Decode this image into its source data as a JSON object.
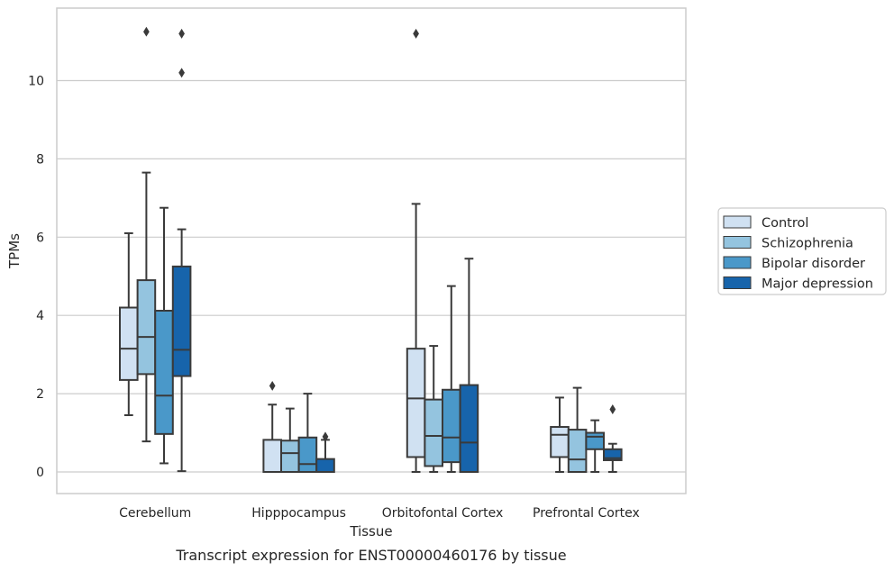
{
  "caption": "Transcript expression for ENST00000460176 by tissue",
  "chart_data": {
    "type": "boxplot",
    "title": "",
    "xlabel": "Tissue",
    "ylabel": "TPMs",
    "ylim": [
      -0.55,
      11.85
    ],
    "yticks": [
      0,
      2,
      4,
      6,
      8,
      10
    ],
    "grid": "horizontal",
    "legend_position": "right",
    "categories": [
      "Cerebellum",
      "Hipppocampus",
      "Orbitofontal Cortex",
      "Prefrontal Cortex"
    ],
    "series": [
      {
        "name": "Control",
        "color": "#d0e1f2",
        "boxes": [
          {
            "whislo": 1.45,
            "q1": 2.35,
            "med": 3.15,
            "q3": 4.2,
            "whishi": 6.1,
            "fliers": []
          },
          {
            "whislo": 0.0,
            "q1": 0.0,
            "med": 0.0,
            "q3": 0.82,
            "whishi": 1.72,
            "fliers": [
              2.2
            ]
          },
          {
            "whislo": 0.0,
            "q1": 0.38,
            "med": 1.88,
            "q3": 3.15,
            "whishi": 6.85,
            "fliers": [
              11.2
            ]
          },
          {
            "whislo": 0.0,
            "q1": 0.38,
            "med": 0.95,
            "q3": 1.15,
            "whishi": 1.9,
            "fliers": []
          }
        ]
      },
      {
        "name": "Schizophrenia",
        "color": "#94c4df",
        "boxes": [
          {
            "whislo": 0.78,
            "q1": 2.5,
            "med": 3.45,
            "q3": 4.9,
            "whishi": 7.65,
            "fliers": [
              11.25
            ]
          },
          {
            "whislo": 0.0,
            "q1": 0.0,
            "med": 0.48,
            "q3": 0.8,
            "whishi": 1.62,
            "fliers": []
          },
          {
            "whislo": 0.0,
            "q1": 0.15,
            "med": 0.92,
            "q3": 1.85,
            "whishi": 3.22,
            "fliers": []
          },
          {
            "whislo": 0.0,
            "q1": 0.0,
            "med": 0.32,
            "q3": 1.08,
            "whishi": 2.15,
            "fliers": []
          }
        ]
      },
      {
        "name": "Bipolar disorder",
        "color": "#4a98c9",
        "boxes": [
          {
            "whislo": 0.22,
            "q1": 0.97,
            "med": 1.95,
            "q3": 4.12,
            "whishi": 6.75,
            "fliers": []
          },
          {
            "whislo": 0.0,
            "q1": 0.0,
            "med": 0.2,
            "q3": 0.88,
            "whishi": 2.0,
            "fliers": []
          },
          {
            "whislo": 0.0,
            "q1": 0.25,
            "med": 0.88,
            "q3": 2.1,
            "whishi": 4.75,
            "fliers": []
          },
          {
            "whislo": 0.0,
            "q1": 0.58,
            "med": 0.9,
            "q3": 1.0,
            "whishi": 1.32,
            "fliers": []
          }
        ]
      },
      {
        "name": "Major depression",
        "color": "#1764ab",
        "boxes": [
          {
            "whislo": 0.02,
            "q1": 2.45,
            "med": 3.12,
            "q3": 5.25,
            "whishi": 6.2,
            "fliers": [
              10.2,
              11.2
            ]
          },
          {
            "whislo": 0.0,
            "q1": 0.0,
            "med": 0.0,
            "q3": 0.33,
            "whishi": 0.82,
            "fliers": [
              0.9
            ]
          },
          {
            "whislo": 0.0,
            "q1": 0.0,
            "med": 0.75,
            "q3": 2.22,
            "whishi": 5.45,
            "fliers": []
          },
          {
            "whislo": 0.0,
            "q1": 0.3,
            "med": 0.35,
            "q3": 0.58,
            "whishi": 0.72,
            "fliers": [
              1.6
            ]
          }
        ]
      }
    ]
  }
}
